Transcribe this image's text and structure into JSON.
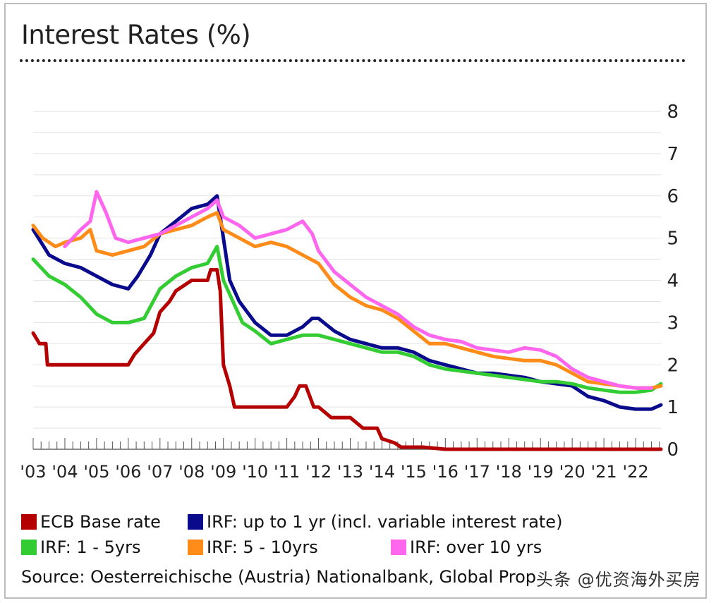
{
  "header": {
    "title": "Interest Rates (%)"
  },
  "legend": [
    {
      "label": "ECB Base rate",
      "color": "#b40000"
    },
    {
      "label": "IRF: up to 1 yr (incl. variable interest rate)",
      "color": "#0a0a8c"
    },
    {
      "label": "IRF: 1 - 5yrs",
      "color": "#33cc33"
    },
    {
      "label": "IRF: 5 - 10yrs",
      "color": "#ff8c19"
    },
    {
      "label": "IRF:  over 10 yrs",
      "color": "#ff66ee"
    }
  ],
  "source": "Source: Oesterreichische (Austria) Nationalbank, Global Prop",
  "watermark": "头条 @优资海外买房",
  "chart_data": {
    "type": "line",
    "title": "Interest Rates (%)",
    "x_tick_labels": [
      "'03",
      "'04",
      "'05",
      "'06",
      "'07",
      "'08",
      "'09",
      "'10",
      "'11",
      "'12",
      "'13",
      "'14",
      "'15",
      "'16",
      "'17",
      "'18",
      "'19",
      "'20",
      "'21",
      "'22"
    ],
    "xlim": [
      2003.0,
      2022.8
    ],
    "ylim": [
      0,
      8
    ],
    "y_ticks": [
      0,
      1,
      2,
      3,
      4,
      5,
      6,
      7,
      8
    ],
    "y_axis_side": "right",
    "grid": "horizontal",
    "series": [
      {
        "name": "ECB Base rate",
        "color": "#b40000",
        "x": [
          2003.0,
          2003.2,
          2003.4,
          2003.45,
          2006.0,
          2006.2,
          2006.5,
          2006.8,
          2007.0,
          2007.3,
          2007.5,
          2008.0,
          2008.5,
          2008.6,
          2008.8,
          2008.9,
          2009.0,
          2009.2,
          2009.35,
          2010.0,
          2011.0,
          2011.25,
          2011.4,
          2011.6,
          2011.85,
          2012.0,
          2012.4,
          2012.6,
          2013.0,
          2013.4,
          2013.85,
          2014.0,
          2014.4,
          2014.6,
          2015.0,
          2015.3,
          2016.0,
          2016.2,
          2022.8
        ],
        "y": [
          2.75,
          2.5,
          2.5,
          2.0,
          2.0,
          2.25,
          2.5,
          2.75,
          3.25,
          3.5,
          3.75,
          4.0,
          4.0,
          4.25,
          4.25,
          3.75,
          2.0,
          1.5,
          1.0,
          1.0,
          1.0,
          1.25,
          1.5,
          1.5,
          1.0,
          1.0,
          0.75,
          0.75,
          0.75,
          0.5,
          0.5,
          0.25,
          0.15,
          0.05,
          0.05,
          0.05,
          0.0,
          0.0,
          0.0
        ]
      },
      {
        "name": "IRF: up to 1 yr (incl. variable interest rate)",
        "color": "#0a0a8c",
        "x": [
          2003.0,
          2003.5,
          2004.0,
          2004.5,
          2005.0,
          2005.5,
          2006.0,
          2006.3,
          2006.7,
          2007.0,
          2007.5,
          2008.0,
          2008.5,
          2008.8,
          2009.0,
          2009.2,
          2009.5,
          2010.0,
          2010.5,
          2011.0,
          2011.5,
          2011.8,
          2012.0,
          2012.5,
          2013.0,
          2013.5,
          2014.0,
          2014.5,
          2015.0,
          2015.5,
          2016.0,
          2016.5,
          2017.0,
          2017.5,
          2018.0,
          2018.5,
          2019.0,
          2019.5,
          2020.0,
          2020.5,
          2021.0,
          2021.5,
          2022.0,
          2022.5,
          2022.8
        ],
        "y": [
          5.2,
          4.6,
          4.4,
          4.3,
          4.1,
          3.9,
          3.8,
          4.1,
          4.6,
          5.1,
          5.4,
          5.7,
          5.8,
          6.0,
          5.0,
          4.0,
          3.5,
          3.0,
          2.7,
          2.7,
          2.9,
          3.1,
          3.1,
          2.8,
          2.6,
          2.5,
          2.4,
          2.4,
          2.3,
          2.1,
          2.0,
          1.9,
          1.8,
          1.8,
          1.75,
          1.7,
          1.6,
          1.55,
          1.5,
          1.25,
          1.15,
          1.0,
          0.95,
          0.95,
          1.05
        ]
      },
      {
        "name": "IRF: 1 - 5yrs",
        "color": "#33cc33",
        "x": [
          2003.0,
          2003.5,
          2004.0,
          2004.5,
          2005.0,
          2005.5,
          2006.0,
          2006.5,
          2007.0,
          2007.5,
          2008.0,
          2008.5,
          2008.8,
          2009.0,
          2009.3,
          2009.6,
          2010.0,
          2010.5,
          2011.0,
          2011.5,
          2012.0,
          2012.5,
          2013.0,
          2013.5,
          2014.0,
          2014.5,
          2015.0,
          2015.5,
          2016.0,
          2016.5,
          2017.0,
          2017.5,
          2018.0,
          2018.5,
          2019.0,
          2019.5,
          2020.0,
          2020.5,
          2021.0,
          2021.5,
          2022.0,
          2022.5,
          2022.8
        ],
        "y": [
          4.5,
          4.1,
          3.9,
          3.6,
          3.2,
          3.0,
          3.0,
          3.1,
          3.8,
          4.1,
          4.3,
          4.4,
          4.8,
          4.0,
          3.5,
          3.0,
          2.8,
          2.5,
          2.6,
          2.7,
          2.7,
          2.6,
          2.5,
          2.4,
          2.3,
          2.3,
          2.2,
          2.0,
          1.9,
          1.85,
          1.8,
          1.75,
          1.7,
          1.65,
          1.6,
          1.6,
          1.55,
          1.45,
          1.4,
          1.35,
          1.35,
          1.4,
          1.55
        ]
      },
      {
        "name": "IRF: 5 - 10yrs",
        "color": "#ff8c19",
        "x": [
          2003.0,
          2003.3,
          2003.7,
          2004.0,
          2004.5,
          2004.8,
          2005.0,
          2005.5,
          2006.0,
          2006.5,
          2007.0,
          2007.5,
          2008.0,
          2008.5,
          2008.8,
          2009.0,
          2009.5,
          2010.0,
          2010.5,
          2011.0,
          2011.5,
          2012.0,
          2012.5,
          2013.0,
          2013.5,
          2014.0,
          2014.5,
          2015.0,
          2015.5,
          2016.0,
          2016.5,
          2017.0,
          2017.5,
          2018.0,
          2018.5,
          2019.0,
          2019.5,
          2020.0,
          2020.5,
          2021.0,
          2021.5,
          2022.0,
          2022.5,
          2022.8
        ],
        "y": [
          5.3,
          5.0,
          4.8,
          4.9,
          5.0,
          5.2,
          4.7,
          4.6,
          4.7,
          4.8,
          5.1,
          5.2,
          5.3,
          5.5,
          5.6,
          5.2,
          5.0,
          4.8,
          4.9,
          4.8,
          4.6,
          4.4,
          3.9,
          3.6,
          3.4,
          3.3,
          3.1,
          2.8,
          2.5,
          2.5,
          2.4,
          2.3,
          2.2,
          2.15,
          2.1,
          2.1,
          2.0,
          1.8,
          1.6,
          1.55,
          1.5,
          1.45,
          1.45,
          1.5
        ]
      },
      {
        "name": "IRF:  over 10 yrs",
        "color": "#ff66ee",
        "x": [
          2004.0,
          2004.5,
          2004.8,
          2005.0,
          2005.3,
          2005.6,
          2006.0,
          2006.5,
          2007.0,
          2007.5,
          2008.0,
          2008.5,
          2008.8,
          2009.0,
          2009.5,
          2010.0,
          2010.5,
          2011.0,
          2011.5,
          2011.8,
          2012.0,
          2012.5,
          2013.0,
          2013.5,
          2014.0,
          2014.5,
          2015.0,
          2015.5,
          2016.0,
          2016.5,
          2017.0,
          2017.5,
          2018.0,
          2018.5,
          2019.0,
          2019.5,
          2020.0,
          2020.5,
          2021.0,
          2021.5,
          2022.0,
          2022.5
        ],
        "y": [
          4.8,
          5.2,
          5.4,
          6.1,
          5.6,
          5.0,
          4.9,
          5.0,
          5.1,
          5.3,
          5.5,
          5.7,
          5.9,
          5.5,
          5.3,
          5.0,
          5.1,
          5.2,
          5.4,
          5.1,
          4.7,
          4.2,
          3.9,
          3.6,
          3.4,
          3.2,
          2.9,
          2.7,
          2.6,
          2.55,
          2.4,
          2.35,
          2.3,
          2.4,
          2.35,
          2.2,
          1.9,
          1.7,
          1.6,
          1.5,
          1.45,
          1.45
        ]
      }
    ]
  }
}
